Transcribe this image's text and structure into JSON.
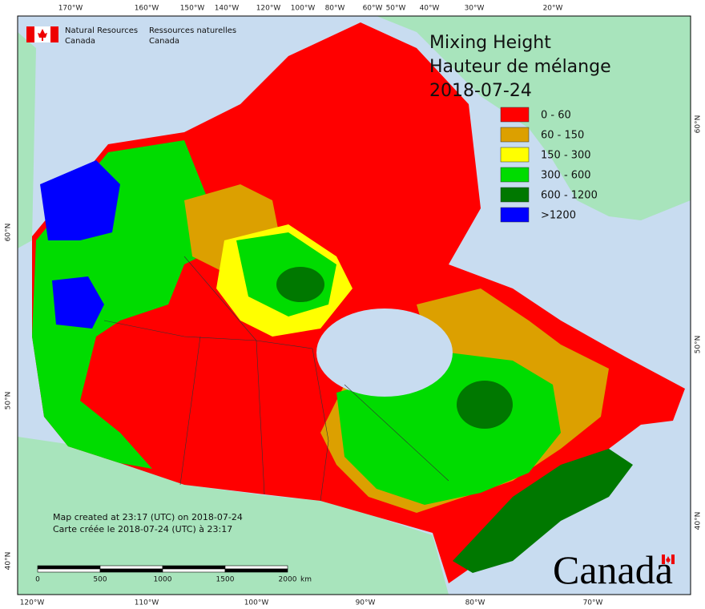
{
  "header": {
    "org_en": [
      "Natural Resources",
      "Canada"
    ],
    "org_fr": [
      "Ressources naturelles",
      "Canada"
    ]
  },
  "title": {
    "lines": [
      "Mixing Height",
      "Hauteur de mélange",
      "2018-07-24"
    ]
  },
  "legend": {
    "items": [
      {
        "label": "0 - 60",
        "color": "#ff0000"
      },
      {
        "label": "60 - 150",
        "color": "#dca000"
      },
      {
        "label": "150 - 300",
        "color": "#ffff00"
      },
      {
        "label": "300 - 600",
        "color": "#00dc00"
      },
      {
        "label": "600 - 1200",
        "color": "#007800"
      },
      {
        "label": ">1200",
        "color": "#0000ff"
      }
    ]
  },
  "graticule": {
    "top": [
      "170°W",
      "160°W",
      "150°W",
      "140°W",
      "120°W",
      "100°W",
      "80°W",
      "60°W",
      "50°W",
      "40°W",
      "30°W",
      "20°W"
    ],
    "bottom": [
      "120°W",
      "110°W",
      "100°W",
      "90°W",
      "80°W",
      "70°W"
    ],
    "left": [
      "60°N",
      "50°N",
      "40°N"
    ],
    "right": [
      "60°N",
      "50°N",
      "40°N"
    ]
  },
  "credits": {
    "lines": [
      "Map created at 23:17 (UTC) on 2018-07-24",
      "Carte créée le 2018-07-24 (UTC) à 23:17"
    ]
  },
  "scale_bar": {
    "labels": [
      "0",
      "500",
      "1000",
      "1500",
      "2000"
    ],
    "unit": "km"
  },
  "wordmark": "Canada"
}
